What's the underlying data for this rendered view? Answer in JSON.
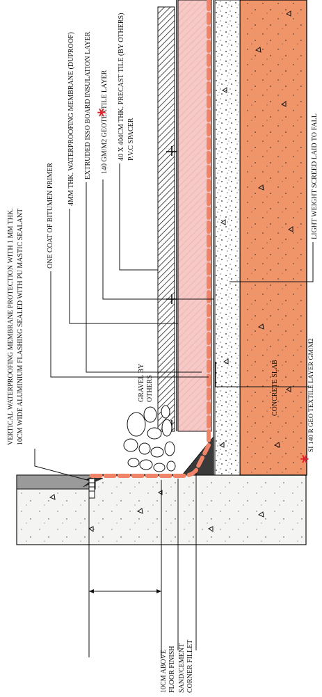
{
  "labels": {
    "vertical_membrane_1": "VERTICAL WATERPROOFING MEMBRANE PROTECTION WITH 1 MM THK.",
    "vertical_membrane_2": "10CM WIDE ALUMINIUM FLASHING SEALED WITH PU MASTIC SEALANT",
    "bitumen_primer": "ONE COAT OF BITUMEN PRIMER",
    "waterproof_membrane": "4MM THK.  WATERPROOFING MEMBRANE (DUPROOF)",
    "insulation": "EXTRUDED ISSO BOARD INSULATION LAYER",
    "geotextile": "140 GM/M2 GEOTEXTILE LAYER",
    "precast_tile": "40 X 404CM THK. PRECAST TILE (BY OTHERS)",
    "pvc_spacer": "P.V.C SPACER",
    "screed": "LIGHT WEIGHT SCREED LAID TO FALL",
    "concrete_slab": "CONCRETE SLAB",
    "gravel_1": "GRAVEL BY",
    "gravel_2": "OTHERS",
    "floor_finish_1": "10CM ABOVE",
    "floor_finish_2": "FLOOR FINISH",
    "fillet_1": "SAND/CEMENT",
    "fillet_2": "CORNER FILLET",
    "note": "SI 140 R GEO TEXTILE LAYER GM/M2",
    "asterisk": "*"
  },
  "colors": {
    "concrete_slab": "#f0956a",
    "insulation": "#f6c9c6",
    "membrane_dash": "#f08468",
    "asterisk": "#e0202a",
    "wall": "#f4f4f2"
  }
}
